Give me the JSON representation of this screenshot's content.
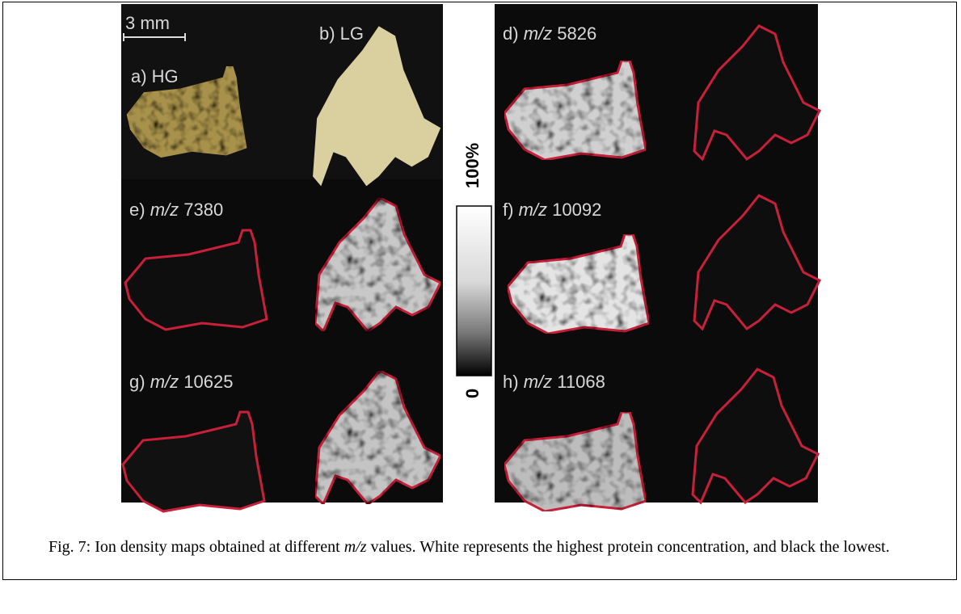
{
  "figure": {
    "scale_bar": "3 mm",
    "photo_labels": [
      "a) HG",
      "b) LG"
    ],
    "maps": [
      {
        "prefix": "d)",
        "italic": "m/z",
        "number": "5826"
      },
      {
        "prefix": "e)",
        "italic": "m/z",
        "number": "7380"
      },
      {
        "prefix": "f)",
        "italic": "m/z",
        "number": "10092"
      },
      {
        "prefix": "g)",
        "italic": "m/z",
        "number": "10625"
      },
      {
        "prefix": "h)",
        "italic": "m/z",
        "number": "11068"
      }
    ],
    "colorbar": {
      "max": "100%",
      "min": "0"
    }
  },
  "caption": [
    "Fig. 7: Ion density maps obtained at different ",
    "m/z",
    " values. White represents the highest protein concentration, and black the lowest."
  ]
}
